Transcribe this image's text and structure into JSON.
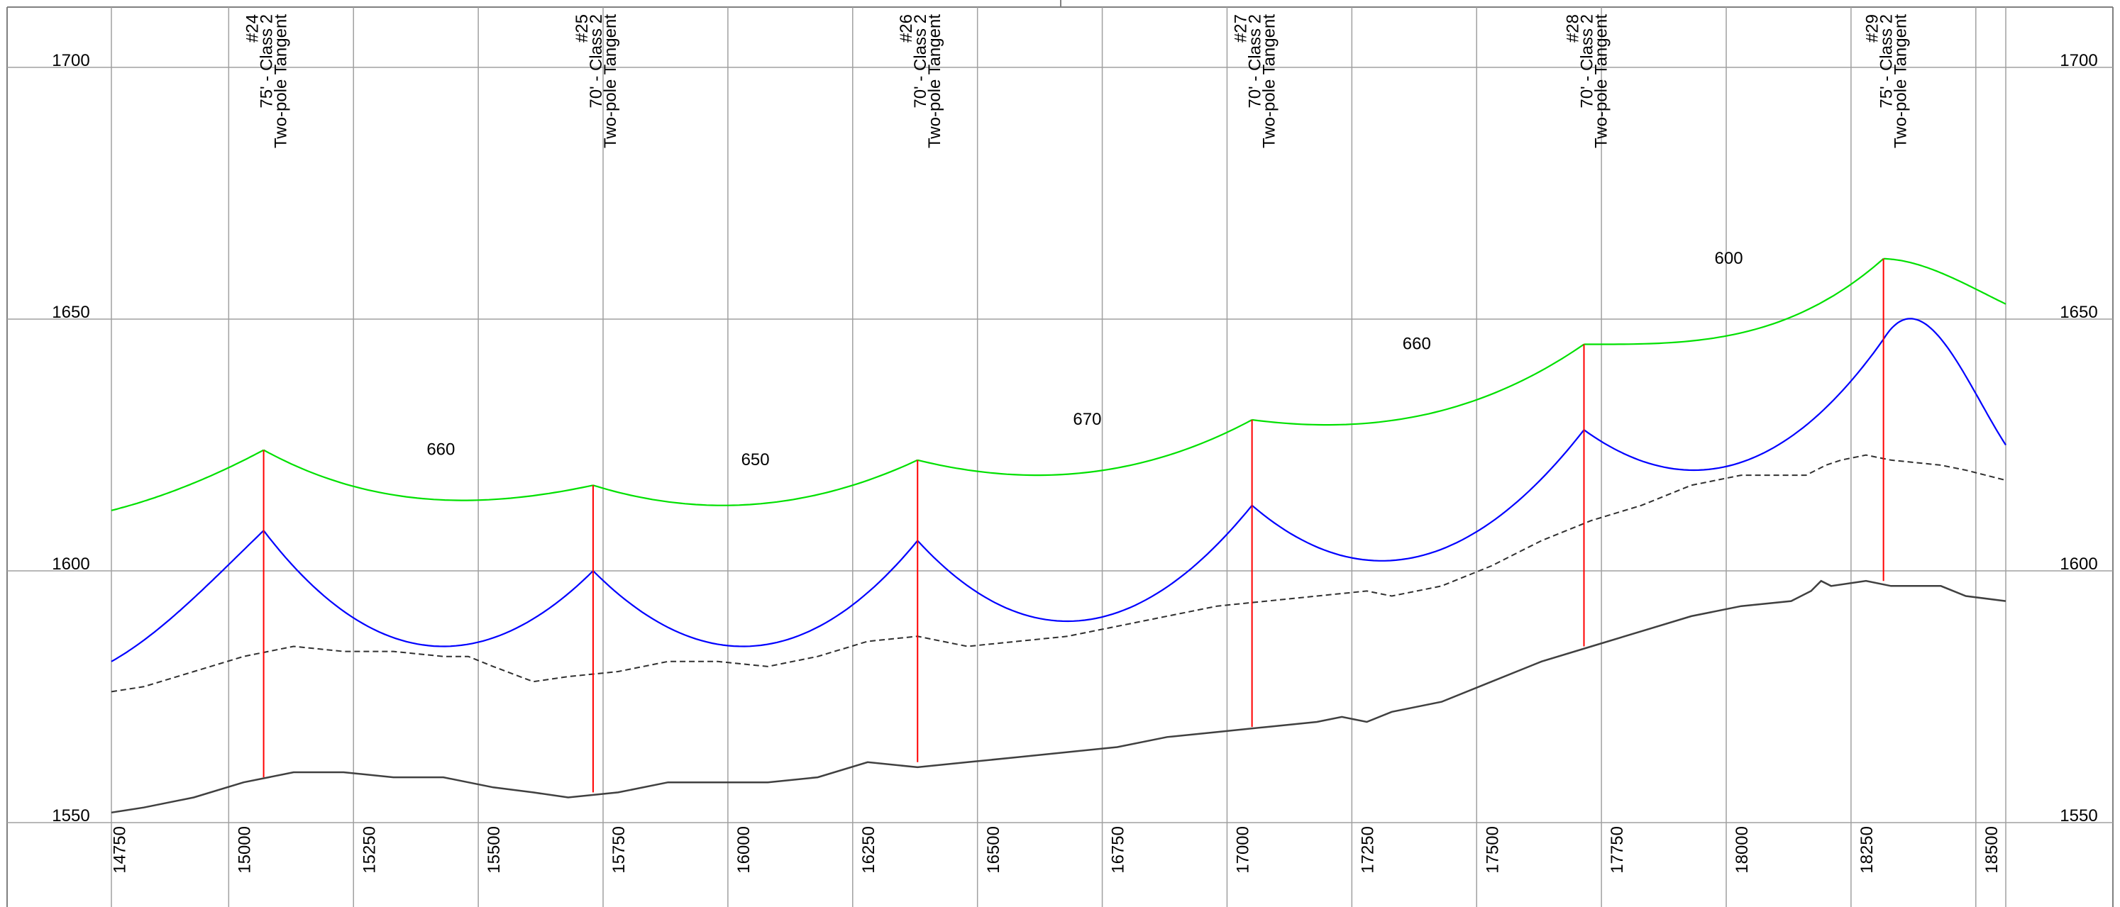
{
  "chart_data": {
    "type": "line",
    "title": "",
    "xlabel": "",
    "ylabel": "",
    "xlim": [
      14720,
      18530
    ],
    "ylim": [
      1550,
      1710
    ],
    "x_ticks": [
      14750,
      15000,
      15250,
      15500,
      15750,
      16000,
      16250,
      16500,
      16750,
      17000,
      17250,
      17500,
      17750,
      18000,
      18250,
      18500
    ],
    "y_ticks": [
      1550,
      1600,
      1650,
      1700
    ],
    "x_minor_gridlines": [
      14970,
      15220,
      15470,
      15720,
      15970,
      16220,
      16470,
      16720,
      16970,
      17220,
      17470,
      17720,
      17970,
      18220,
      18470
    ],
    "grid": true,
    "colors": {
      "upper_conductor": "#00e000",
      "lower_conductor": "#0000ff",
      "pole": "#ff0000",
      "ground": "#404040",
      "surface_line": "#303030",
      "grid": "#a0a0a0"
    },
    "poles": [
      {
        "x": 15040,
        "top": 1624,
        "bottom": 1559,
        "number": "#24",
        "spec": "75' - Class 2",
        "type": "Two-pole Tangent"
      },
      {
        "x": 15700,
        "top": 1617,
        "bottom": 1556,
        "number": "#25",
        "spec": "70' - Class 2",
        "type": "Two-pole Tangent"
      },
      {
        "x": 16350,
        "top": 1622,
        "bottom": 1562,
        "number": "#26",
        "spec": "70' - Class 2",
        "type": "Two-pole Tangent"
      },
      {
        "x": 17020,
        "top": 1630,
        "bottom": 1569,
        "number": "#27",
        "spec": "70' - Class 2",
        "type": "Two-pole Tangent"
      },
      {
        "x": 17685,
        "top": 1645,
        "bottom": 1585,
        "number": "#28",
        "spec": "70' - Class 2",
        "type": "Two-pole Tangent"
      },
      {
        "x": 18285,
        "top": 1662,
        "bottom": 1598,
        "number": "#29",
        "spec": "75' - Class 2",
        "type": "Two-pole Tangent"
      }
    ],
    "span_labels": [
      {
        "x": 15395,
        "y": 1623,
        "text": "660"
      },
      {
        "x": 16025,
        "y": 1621,
        "text": "650"
      },
      {
        "x": 16690,
        "y": 1629,
        "text": "670"
      },
      {
        "x": 17350,
        "y": 1644,
        "text": "660"
      },
      {
        "x": 17975,
        "y": 1661,
        "text": "600"
      }
    ],
    "series": [
      {
        "name": "",
        "role": "upper_conductor",
        "spans": [
          {
            "x1": 14735,
            "y1": 1612,
            "x2": 15040,
            "y2": 1624,
            "sag_x": 14500,
            "sag_y": 1609
          },
          {
            "x1": 15040,
            "y1": 1624,
            "x2": 15700,
            "y2": 1617,
            "sag_x": 15440,
            "sag_y": 1614
          },
          {
            "x1": 15700,
            "y1": 1617,
            "x2": 16350,
            "y2": 1622,
            "sag_x": 15960,
            "sag_y": 1613
          },
          {
            "x1": 16350,
            "y1": 1622,
            "x2": 17020,
            "y2": 1630,
            "sag_x": 16590,
            "sag_y": 1619
          },
          {
            "x1": 17020,
            "y1": 1630,
            "x2": 17685,
            "y2": 1645,
            "sag_x": 17170,
            "sag_y": 1629
          },
          {
            "x1": 17685,
            "y1": 1645,
            "x2": 18285,
            "y2": 1662,
            "sag_x": 17710,
            "sag_y": 1645
          },
          {
            "x1": 18285,
            "y1": 1662,
            "x2": 18530,
            "y2": 1653,
            "sag_x": 18700,
            "sag_y": 1648
          }
        ]
      },
      {
        "name": "",
        "role": "lower_conductor",
        "spans": [
          {
            "x1": 14735,
            "y1": 1582,
            "x2": 15040,
            "y2": 1608,
            "sag_x": 14600,
            "sag_y": 1578
          },
          {
            "x1": 15040,
            "y1": 1608,
            "x2": 15700,
            "y2": 1600,
            "sag_x": 15400,
            "sag_y": 1585
          },
          {
            "x1": 15700,
            "y1": 1600,
            "x2": 16350,
            "y2": 1606,
            "sag_x": 16000,
            "sag_y": 1585
          },
          {
            "x1": 16350,
            "y1": 1606,
            "x2": 17020,
            "y2": 1613,
            "sag_x": 16650,
            "sag_y": 1590
          },
          {
            "x1": 17020,
            "y1": 1613,
            "x2": 17685,
            "y2": 1628,
            "sag_x": 17280,
            "sag_y": 1602
          },
          {
            "x1": 17685,
            "y1": 1628,
            "x2": 18285,
            "y2": 1646,
            "sag_x": 17905,
            "sag_y": 1620
          },
          {
            "x1": 18285,
            "y1": 1646,
            "x2": 18530,
            "y2": 1625,
            "sag_x": 18620,
            "sag_y": 1617
          }
        ]
      },
      {
        "name": "",
        "role": "surface_line",
        "style": "dashed",
        "x": [
          14735,
          14800,
          14900,
          15000,
          15100,
          15200,
          15300,
          15400,
          15450,
          15500,
          15580,
          15650,
          15750,
          15850,
          15950,
          16050,
          16150,
          16250,
          16350,
          16450,
          16550,
          16650,
          16750,
          16850,
          16950,
          17050,
          17150,
          17250,
          17300,
          17400,
          17500,
          17600,
          17700,
          17800,
          17900,
          18000,
          18060,
          18100,
          18130,
          18150,
          18170,
          18200,
          18250,
          18300,
          18400,
          18450,
          18530
        ],
        "y": [
          1576,
          1577,
          1580,
          1583,
          1585,
          1584,
          1584,
          1583,
          1583,
          1581,
          1578,
          1579,
          1580,
          1582,
          1582,
          1581,
          1583,
          1586,
          1587,
          1585,
          1586,
          1587,
          1589,
          1591,
          1593,
          1594,
          1595,
          1596,
          1595,
          1597,
          1601,
          1606,
          1610,
          1613,
          1617,
          1619,
          1619,
          1619,
          1619,
          1620,
          1621,
          1622,
          1623,
          1622,
          1621,
          1620,
          1618
        ]
      },
      {
        "name": "",
        "role": "ground",
        "x": [
          14735,
          14800,
          14900,
          15000,
          15100,
          15200,
          15300,
          15400,
          15450,
          15500,
          15580,
          15650,
          15750,
          15850,
          15950,
          16050,
          16150,
          16250,
          16350,
          16450,
          16550,
          16650,
          16750,
          16850,
          16950,
          17050,
          17150,
          17200,
          17250,
          17300,
          17400,
          17500,
          17600,
          17700,
          17800,
          17900,
          18000,
          18100,
          18140,
          18160,
          18180,
          18250,
          18300,
          18400,
          18450,
          18530
        ],
        "y": [
          1552,
          1553,
          1555,
          1558,
          1560,
          1560,
          1559,
          1559,
          1558,
          1557,
          1556,
          1555,
          1556,
          1558,
          1558,
          1558,
          1559,
          1562,
          1561,
          1562,
          1563,
          1564,
          1565,
          1567,
          1568,
          1569,
          1570,
          1571,
          1570,
          1572,
          1574,
          1578,
          1582,
          1585,
          1588,
          1591,
          1593,
          1594,
          1596,
          1598,
          1597,
          1598,
          1597,
          1597,
          1595,
          1594
        ]
      }
    ]
  }
}
